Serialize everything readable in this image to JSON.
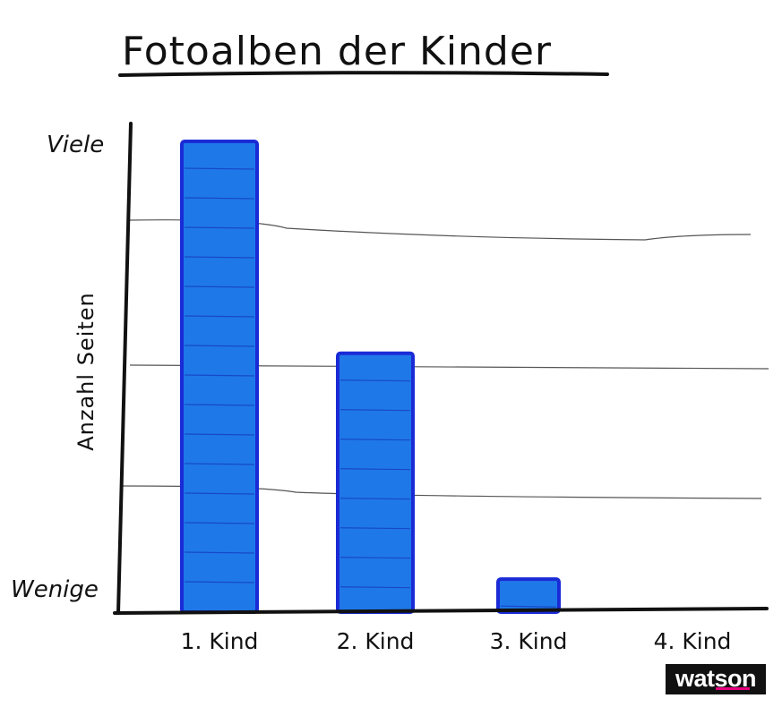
{
  "chart_data": {
    "type": "bar",
    "title": "Fotoalben der Kinder",
    "ylabel": "Anzahl Seiten",
    "xlabel": "",
    "y_tick_labels": {
      "top": "Viele",
      "bottom": "Wenige"
    },
    "categories": [
      "1. Kind",
      "2. Kind",
      "3. Kind",
      "4. Kind"
    ],
    "values": [
      100,
      55,
      7,
      0
    ],
    "ylim": [
      0,
      100
    ],
    "grid": true,
    "bar_color": "#1f78e8",
    "bar_edge_color": "#1a2bd6"
  },
  "brand": {
    "label": "watson",
    "accent": "#e5007d"
  }
}
